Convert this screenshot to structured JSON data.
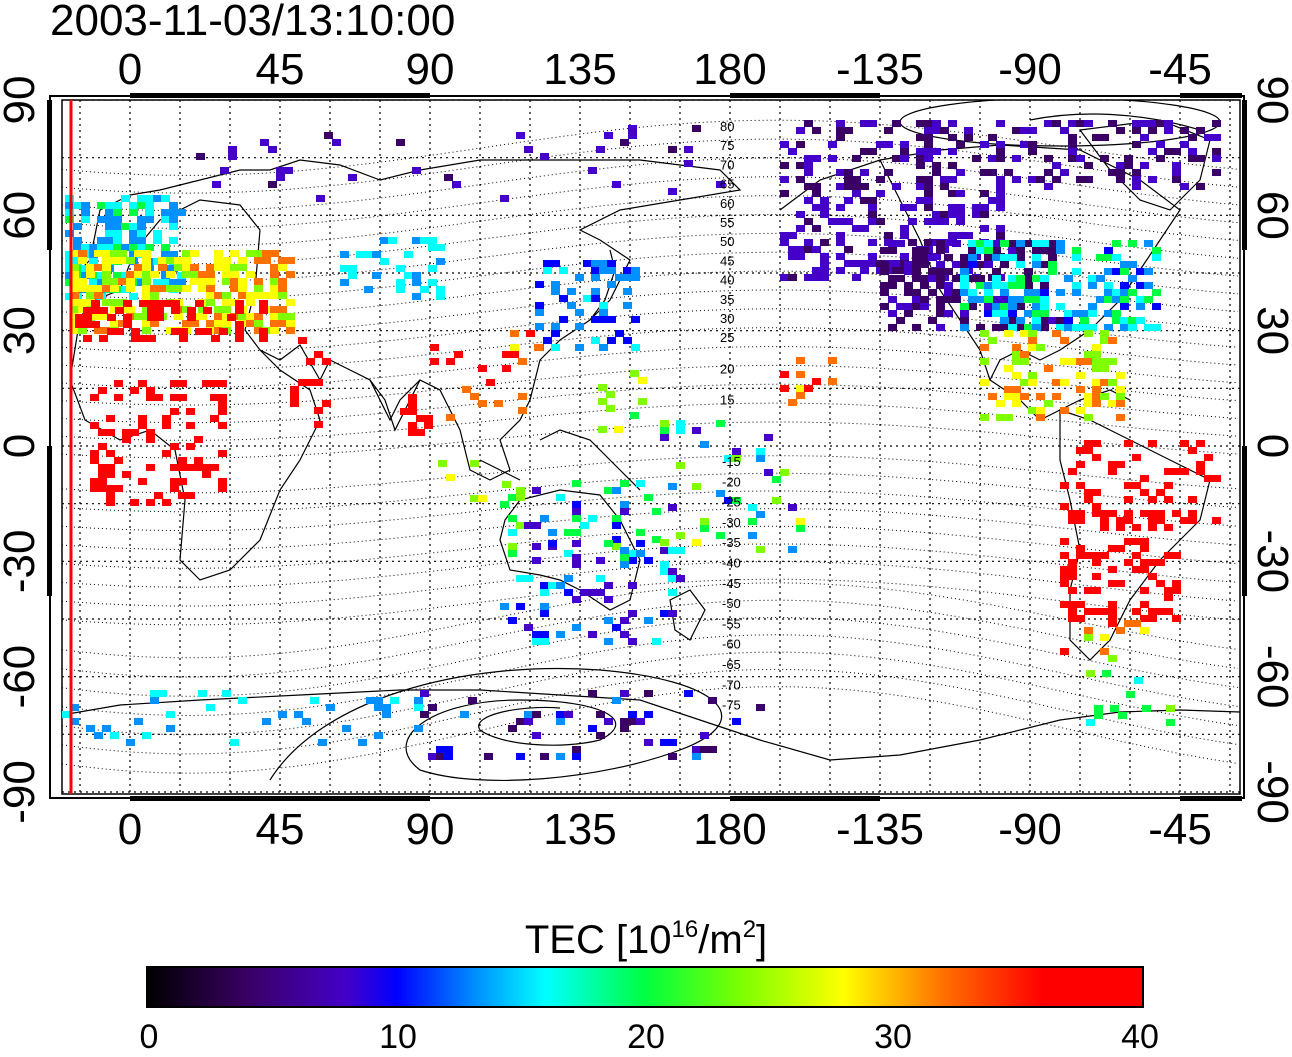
{
  "title": "2003-11-03/13:10:00",
  "map": {
    "lon_labels": [
      "0",
      "45",
      "90",
      "135",
      "180",
      "-135",
      "-90",
      "-45"
    ],
    "lon_values": [
      0,
      45,
      90,
      135,
      180,
      225,
      270,
      315
    ],
    "lat_labels": [
      "90",
      "60",
      "30",
      "0",
      "-30",
      "-60",
      "-90"
    ],
    "lat_values": [
      90,
      60,
      30,
      0,
      -30,
      -60,
      -90
    ],
    "magnetic_latitude_labels_north": [
      "80",
      "75",
      "70",
      "65",
      "60",
      "55",
      "50",
      "45",
      "40",
      "35",
      "30",
      "25",
      "20",
      "15"
    ],
    "magnetic_latitude_labels_south": [
      "-15",
      "-20",
      "-25",
      "-30",
      "-35",
      "-40",
      "-45",
      "-50",
      "-55",
      "-60",
      "-65",
      "-70",
      "-75"
    ],
    "terminator_color": "#ff0000",
    "frame_color": "#000000"
  },
  "colorbar": {
    "title_prefix": "TEC  [10",
    "title_sup1": "16",
    "title_mid": "/m",
    "title_sup2": "2",
    "title_suffix": "]",
    "ticks": [
      "0",
      "10",
      "20",
      "30",
      "40"
    ],
    "tick_values": [
      0,
      10,
      20,
      30,
      40
    ],
    "range": [
      0,
      40
    ],
    "colors": [
      "#000000",
      "#4400c8",
      "#0000ff",
      "#00ffff",
      "#00ff40",
      "#ffff00",
      "#ff0000"
    ]
  }
}
